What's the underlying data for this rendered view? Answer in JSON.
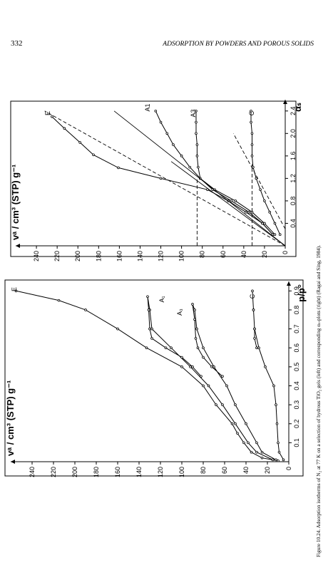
{
  "header": {
    "page_number": "332",
    "running_title": "ADSORPTION BY POWDERS AND POROUS SOLIDS"
  },
  "caption": "Figure 10.24.  Adsorption isotherms of N₂ at 77 K on a selection of hydrous TiO₂ gels (left) and corresponding αₛ-plots (right) (Ragai and Sing, 1984).",
  "chart_data": [
    {
      "type": "line",
      "x_label": "p/p°",
      "y_label": "vᵃ / cm³ (STP) g⁻¹",
      "xlim": [
        0,
        0.95
      ],
      "ylim": [
        0,
        260
      ],
      "xticks": [
        0.1,
        0.2,
        0.3,
        0.4,
        0.5,
        0.6,
        0.7,
        0.8,
        0.9
      ],
      "yticks": [
        0,
        20,
        40,
        60,
        80,
        100,
        120,
        140,
        160,
        180,
        200,
        220,
        240
      ],
      "color": "#000000",
      "series": [
        {
          "name": "E",
          "x": [
            0.005,
            0.02,
            0.05,
            0.1,
            0.15,
            0.2,
            0.3,
            0.4,
            0.5,
            0.6,
            0.7,
            0.8,
            0.85,
            0.9
          ],
          "values": [
            10,
            25,
            35,
            42,
            48,
            53,
            68,
            80,
            100,
            133,
            160,
            190,
            215,
            255
          ]
        },
        {
          "name": "A₁",
          "x": [
            0.01,
            0.05,
            0.1,
            0.2,
            0.3,
            0.4,
            0.5,
            0.6,
            0.7,
            0.8,
            0.87,
            0.8,
            0.7,
            0.65,
            0.6,
            0.55,
            0.5,
            0.45
          ],
          "values": [
            15,
            30,
            38,
            50,
            62,
            75,
            92,
            110,
            128,
            130,
            132,
            131,
            130,
            128,
            115,
            100,
            90,
            82
          ]
        },
        {
          "name": "A₃",
          "x": [
            0.01,
            0.05,
            0.1,
            0.2,
            0.3,
            0.4,
            0.5,
            0.6,
            0.7,
            0.8,
            0.83,
            0.75,
            0.65,
            0.6,
            0.55,
            0.5,
            0.45
          ],
          "values": [
            12,
            25,
            30,
            40,
            50,
            58,
            70,
            80,
            86,
            88,
            90,
            88,
            87,
            85,
            80,
            72,
            62
          ]
        },
        {
          "name": "C",
          "x": [
            0.01,
            0.05,
            0.1,
            0.2,
            0.3,
            0.4,
            0.5,
            0.6,
            0.7,
            0.8,
            0.9,
            0.8,
            0.7,
            0.65,
            0.6
          ],
          "values": [
            5,
            9,
            10,
            11,
            12,
            14,
            22,
            28,
            32,
            33,
            34,
            33,
            32,
            32,
            30
          ]
        }
      ]
    },
    {
      "type": "line",
      "x_label": "αₛ",
      "y_label": "vᵃ / cm³ (STP) g⁻¹",
      "xlim": [
        0,
        2.6
      ],
      "ylim": [
        0,
        260
      ],
      "xticks": [
        0.4,
        0.8,
        1.2,
        1.6,
        {
          "value": 2,
          "label": "2.0"
        },
        2.4
      ],
      "yticks": [
        0,
        20,
        40,
        60,
        80,
        100,
        120,
        140,
        160,
        180,
        200,
        220,
        240
      ],
      "color": "#000000",
      "series": [
        {
          "name": "E",
          "x": [
            0.2,
            0.4,
            0.6,
            0.8,
            1.0,
            1.2,
            1.39,
            1.62,
            1.84,
            2.09,
            2.3
          ],
          "values": [
            12,
            22,
            38,
            55,
            75,
            120,
            161,
            185,
            198,
            213,
            225
          ]
        },
        {
          "name": "A1",
          "x": [
            0.2,
            0.4,
            0.6,
            0.8,
            1.0,
            1.2,
            1.4,
            1.6,
            1.8,
            2.0,
            2.2,
            2.4
          ],
          "values": [
            12,
            22,
            35,
            52,
            70,
            82,
            92,
            100,
            108,
            114,
            120,
            125
          ]
        },
        {
          "name": "A3",
          "x": [
            0.2,
            0.4,
            0.6,
            0.8,
            1.0,
            1.2,
            1.4,
            1.6,
            1.8,
            2.0,
            2.2,
            2.4
          ],
          "values": [
            10,
            20,
            32,
            48,
            68,
            82,
            84,
            85,
            85,
            86,
            86,
            86
          ]
        },
        {
          "name": "C",
          "x": [
            0.2,
            0.4,
            0.6,
            0.8,
            1.0,
            1.2,
            1.4,
            1.6,
            1.8,
            2.0,
            2.2,
            2.4
          ],
          "values": [
            5,
            10,
            15,
            20,
            24,
            28,
            31,
            32,
            32,
            32,
            33,
            33
          ]
        }
      ],
      "fit_lines": [
        {
          "x": [
            0,
            2.4
          ],
          "values": [
            0,
            232
          ],
          "dashed": true
        },
        {
          "x": [
            0,
            2.4
          ],
          "values": [
            0,
            165
          ],
          "dashed": false
        },
        {
          "x": [
            0,
            1.5
          ],
          "values": [
            0,
            110
          ],
          "dashed": false
        },
        {
          "x": [
            0,
            1.2
          ],
          "values": [
            85,
            85
          ],
          "dashed": true
        },
        {
          "x": [
            0,
            1.45
          ],
          "values": [
            32,
            32
          ],
          "dashed": true
        },
        {
          "x": [
            0.3,
            2.0
          ],
          "values": [
            0,
            50
          ],
          "dashed": true
        }
      ]
    }
  ]
}
